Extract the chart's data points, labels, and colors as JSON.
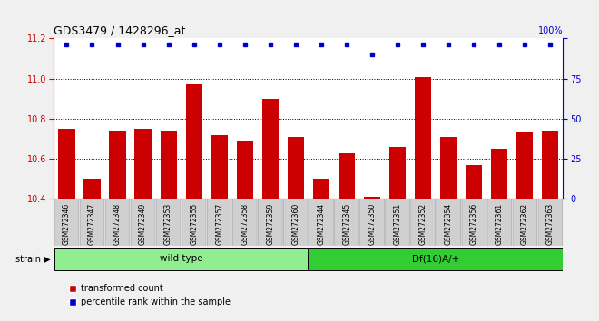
{
  "title": "GDS3479 / 1428296_at",
  "samples": [
    "GSM272346",
    "GSM272347",
    "GSM272348",
    "GSM272349",
    "GSM272353",
    "GSM272355",
    "GSM272357",
    "GSM272358",
    "GSM272359",
    "GSM272360",
    "GSM272344",
    "GSM272345",
    "GSM272350",
    "GSM272351",
    "GSM272352",
    "GSM272354",
    "GSM272356",
    "GSM272361",
    "GSM272362",
    "GSM272363"
  ],
  "bar_values": [
    10.75,
    10.5,
    10.74,
    10.75,
    10.74,
    10.97,
    10.72,
    10.69,
    10.9,
    10.71,
    10.5,
    10.63,
    10.41,
    10.66,
    11.01,
    10.71,
    10.57,
    10.65,
    10.73,
    10.74
  ],
  "percentile_values": [
    100,
    100,
    100,
    100,
    100,
    100,
    100,
    100,
    100,
    100,
    100,
    100,
    90,
    100,
    100,
    100,
    100,
    100,
    100,
    100
  ],
  "wild_type_count": 10,
  "df16_count": 10,
  "wild_type_label": "wild type",
  "df16_label": "Df(16)A/+",
  "strain_label": "strain",
  "bar_color": "#cc0000",
  "percentile_color": "#0000cc",
  "ylim_left": [
    10.4,
    11.2
  ],
  "ylim_right": [
    0,
    100
  ],
  "yticks_left": [
    10.4,
    10.6,
    10.8,
    11.0,
    11.2
  ],
  "yticks_right": [
    0,
    25,
    50,
    75,
    100
  ],
  "grid_values": [
    10.6,
    10.8,
    11.0
  ],
  "legend_items": [
    "transformed count",
    "percentile rank within the sample"
  ],
  "background_color": "#f0f0f0",
  "plot_bg_color": "#ffffff",
  "wt_bg_color": "#90ee90",
  "df_bg_color": "#33cc33",
  "tick_bg_color": "#d0d0d0"
}
